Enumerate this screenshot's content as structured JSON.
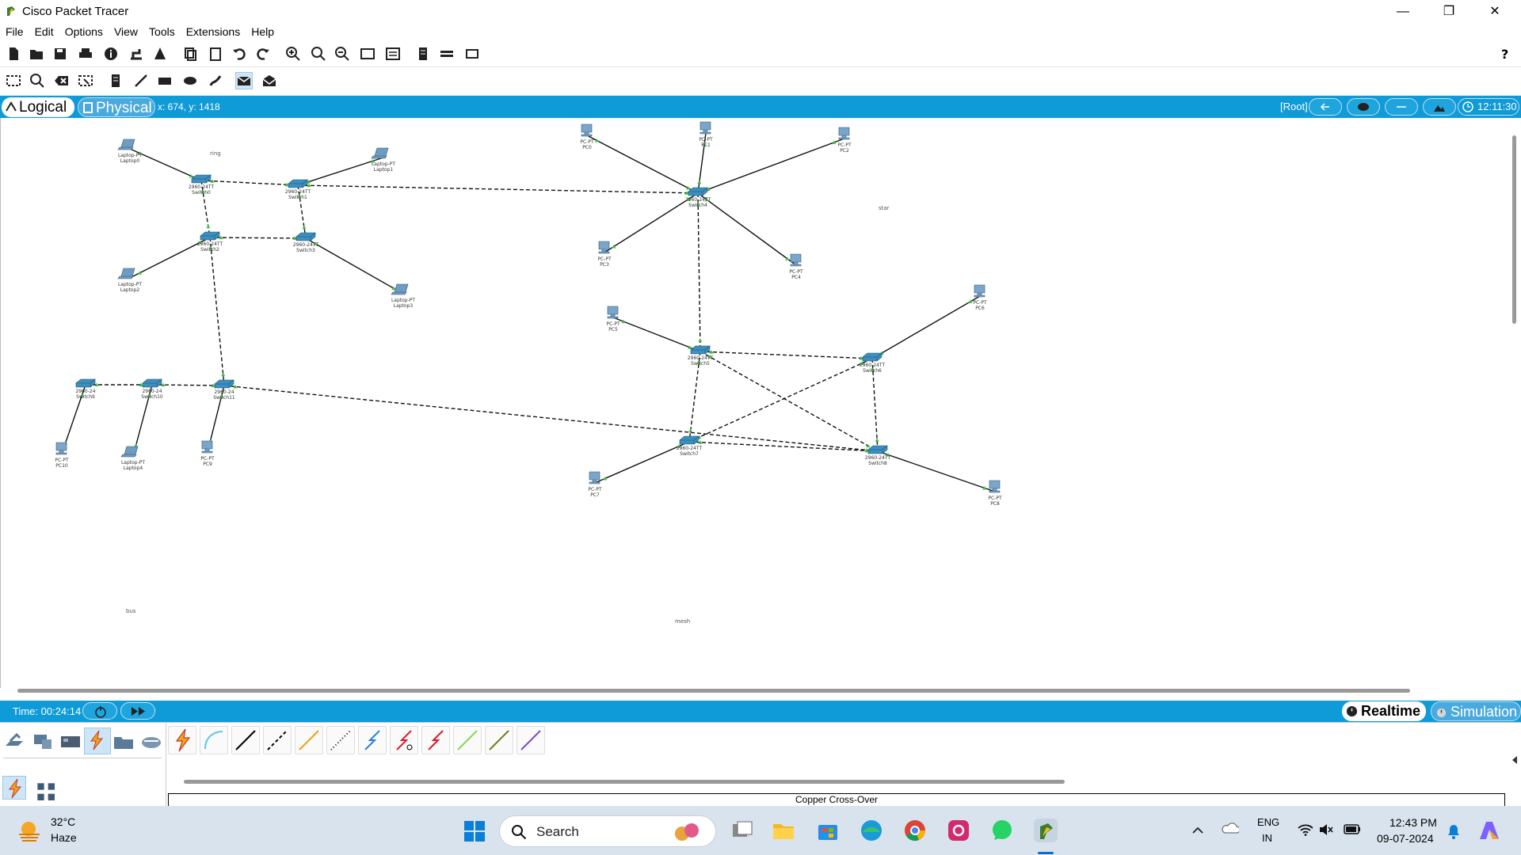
{
  "window": {
    "title": "Cisco Packet Tracer"
  },
  "menu": [
    "File",
    "Edit",
    "Options",
    "View",
    "Tools",
    "Extensions",
    "Help"
  ],
  "workspace": {
    "logical_label": "Logical",
    "physical_label": "Physical",
    "coords": "x: 674, y: 1418",
    "root_label": "[Root]",
    "clock": "12:11:30"
  },
  "topology": {
    "labels": {
      "ring": "ring",
      "star": "star",
      "bus": "bus",
      "mesh": "mesh"
    },
    "devices": [
      {
        "id": "Laptop0",
        "model": "Laptop-PT",
        "name": "Laptop0"
      },
      {
        "id": "Laptop1",
        "model": "Laptop-PT",
        "name": "Laptop1"
      },
      {
        "id": "Laptop2",
        "model": "Laptop-PT",
        "name": "Laptop2"
      },
      {
        "id": "Laptop3",
        "model": "Laptop-PT",
        "name": "Laptop3"
      },
      {
        "id": "Laptop4",
        "model": "Laptop-PT",
        "name": "Laptop4"
      },
      {
        "id": "Switch0",
        "model": "2960-24TT",
        "name": "Switch0"
      },
      {
        "id": "Switch1",
        "model": "2960-24TT",
        "name": "Switch1"
      },
      {
        "id": "Switch2",
        "model": "2960-24TT",
        "name": "Switch2"
      },
      {
        "id": "Switch3",
        "model": "2960-24TT",
        "name": "Switch3"
      },
      {
        "id": "Switch4",
        "model": "2960-24TT",
        "name": "Switch4"
      },
      {
        "id": "Switch5",
        "model": "2960-24TT",
        "name": "Switch5"
      },
      {
        "id": "Switch6",
        "model": "2960-24TT",
        "name": "Switch6"
      },
      {
        "id": "Switch7",
        "model": "2960-24TT",
        "name": "Switch7"
      },
      {
        "id": "Switch8",
        "model": "2960-24TT",
        "name": "Switch8"
      },
      {
        "id": "Switch9",
        "model": "2960-24",
        "name": "Switch9"
      },
      {
        "id": "Switch10",
        "model": "2960-24",
        "name": "Switch10"
      },
      {
        "id": "Switch11",
        "model": "2960-24",
        "name": "Switch11"
      },
      {
        "id": "PC0",
        "model": "PC-PT",
        "name": "PC0"
      },
      {
        "id": "PC1",
        "model": "PC-PT",
        "name": "PC1"
      },
      {
        "id": "PC2",
        "model": "PC-PT",
        "name": "PC2"
      },
      {
        "id": "PC3",
        "model": "PC-PT",
        "name": "PC3"
      },
      {
        "id": "PC4",
        "model": "PC-PT",
        "name": "PC4"
      },
      {
        "id": "PC5",
        "model": "PC-PT",
        "name": "PC5"
      },
      {
        "id": "PC6",
        "model": "PC-PT",
        "name": "PC6"
      },
      {
        "id": "PC7",
        "model": "PC-PT",
        "name": "PC7"
      },
      {
        "id": "PC8",
        "model": "PC-PT",
        "name": "PC8"
      },
      {
        "id": "PC9",
        "model": "PC-PT",
        "name": "PC9"
      },
      {
        "id": "PC10",
        "model": "PC-PT",
        "name": "PC10"
      }
    ],
    "links": [
      {
        "from": "Laptop0",
        "to": "Switch0",
        "type": "straight"
      },
      {
        "from": "Laptop1",
        "to": "Switch1",
        "type": "straight"
      },
      {
        "from": "Switch0",
        "to": "Switch1",
        "type": "cross"
      },
      {
        "from": "Switch0",
        "to": "Switch2",
        "type": "cross"
      },
      {
        "from": "Switch1",
        "to": "Switch3",
        "type": "cross"
      },
      {
        "from": "Switch2",
        "to": "Switch3",
        "type": "cross"
      },
      {
        "from": "Switch2",
        "to": "Laptop2",
        "type": "straight"
      },
      {
        "from": "Switch3",
        "to": "Laptop3",
        "type": "straight"
      },
      {
        "from": "Switch1",
        "to": "Switch4",
        "type": "cross"
      },
      {
        "from": "Switch2",
        "to": "Switch11",
        "type": "cross"
      },
      {
        "from": "PC0",
        "to": "Switch4",
        "type": "straight"
      },
      {
        "from": "PC1",
        "to": "Switch4",
        "type": "straight"
      },
      {
        "from": "PC2",
        "to": "Switch4",
        "type": "straight"
      },
      {
        "from": "PC3",
        "to": "Switch4",
        "type": "straight"
      },
      {
        "from": "PC4",
        "to": "Switch4",
        "type": "straight"
      },
      {
        "from": "Switch4",
        "to": "Switch5",
        "type": "cross"
      },
      {
        "from": "PC5",
        "to": "Switch5",
        "type": "straight"
      },
      {
        "from": "Switch5",
        "to": "Switch6",
        "type": "cross"
      },
      {
        "from": "Switch5",
        "to": "Switch7",
        "type": "cross"
      },
      {
        "from": "Switch5",
        "to": "Switch8",
        "type": "cross"
      },
      {
        "from": "Switch6",
        "to": "Switch7",
        "type": "cross"
      },
      {
        "from": "Switch6",
        "to": "Switch8",
        "type": "cross"
      },
      {
        "from": "Switch7",
        "to": "Switch8",
        "type": "cross"
      },
      {
        "from": "PC6",
        "to": "Switch6",
        "type": "straight"
      },
      {
        "from": "PC7",
        "to": "Switch7",
        "type": "straight"
      },
      {
        "from": "PC8",
        "to": "Switch8",
        "type": "straight"
      },
      {
        "from": "Switch9",
        "to": "Switch10",
        "type": "cross"
      },
      {
        "from": "Switch10",
        "to": "Switch11",
        "type": "cross"
      },
      {
        "from": "Switch11",
        "to": "Switch8",
        "type": "cross"
      },
      {
        "from": "Switch9",
        "to": "PC10",
        "type": "straight"
      },
      {
        "from": "Switch10",
        "to": "Laptop4",
        "type": "straight"
      },
      {
        "from": "Switch11",
        "to": "PC9",
        "type": "straight"
      }
    ]
  },
  "timebar": {
    "time": "Time: 00:24:14",
    "realtime_label": "Realtime",
    "simulation_label": "Simulation"
  },
  "bottom": {
    "selected_connection": "Copper Cross-Over"
  },
  "taskbar": {
    "temperature": "32°C",
    "weather": "Haze",
    "search_placeholder": "Search",
    "lang1": "ENG",
    "lang2": "IN",
    "time": "12:43 PM",
    "date": "09-07-2024"
  }
}
